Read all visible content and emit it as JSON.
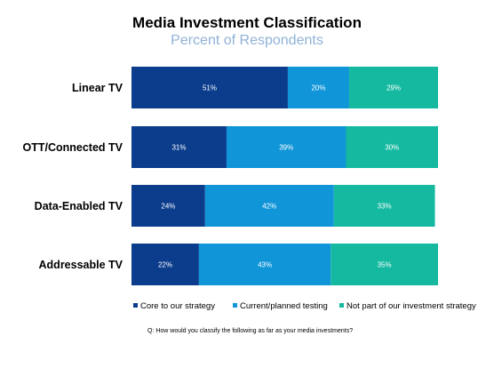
{
  "chart_data": {
    "type": "bar",
    "orientation": "horizontal",
    "stacked": true,
    "title": "Media Investment Classification",
    "subtitle": "Percent of Respondents",
    "categories": [
      "Linear TV",
      "OTT/Connected TV",
      "Data-Enabled TV",
      "Addressable TV"
    ],
    "series": [
      {
        "name": "Core to our strategy",
        "color": "#0b3d8c",
        "values": [
          51,
          31,
          24,
          22
        ]
      },
      {
        "name": "Current/planned testing",
        "color": "#0f95d8",
        "values": [
          20,
          39,
          42,
          43
        ]
      },
      {
        "name": "Not part of our investment strategy",
        "color": "#14b9a0",
        "values": [
          29,
          30,
          33,
          35
        ]
      }
    ],
    "value_suffix": "%",
    "xlim": [
      0,
      100
    ],
    "grid": false,
    "legend_position": "bottom"
  },
  "footnote": "Q: How would you classify the following as far as your media investments?"
}
